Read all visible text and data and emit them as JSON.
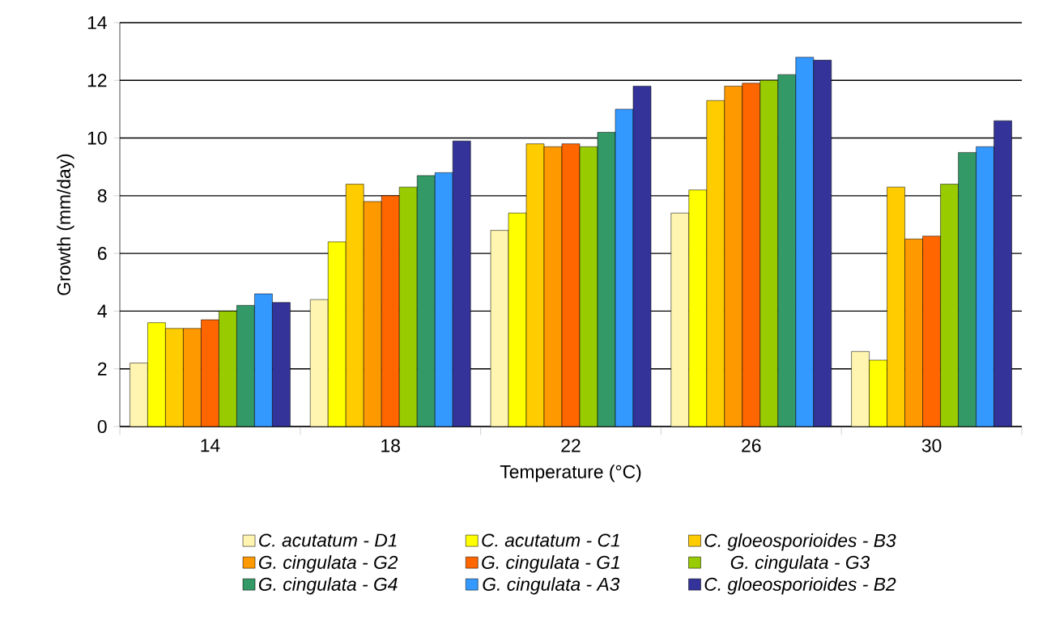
{
  "chart_data": {
    "type": "bar",
    "xlabel": "Temperature (°C)",
    "ylabel": "Growth (mm/day)",
    "categories": [
      "14",
      "18",
      "22",
      "26",
      "30"
    ],
    "ylim": [
      0,
      14
    ],
    "yticks": [
      0,
      2,
      4,
      6,
      8,
      10,
      12,
      14
    ],
    "grid": "y",
    "legend": "bottom",
    "series": [
      {
        "name": "C. acutatum - D1",
        "color": "#fff5b0",
        "values": [
          2.2,
          4.4,
          6.8,
          7.4,
          2.6
        ]
      },
      {
        "name": "C. acutatum - C1",
        "color": "#ffff00",
        "values": [
          3.6,
          6.4,
          7.4,
          8.2,
          2.3
        ]
      },
      {
        "name": "C. gloeosporioides - B3",
        "color": "#ffcc00",
        "values": [
          3.4,
          8.4,
          9.8,
          11.3,
          8.3
        ]
      },
      {
        "name": "G. cingulata - G2",
        "color": "#ff9900",
        "values": [
          3.4,
          7.8,
          9.7,
          11.8,
          6.5
        ]
      },
      {
        "name": "G. cingulata - G1",
        "color": "#ff6600",
        "values": [
          3.7,
          8.0,
          9.8,
          11.9,
          6.6
        ]
      },
      {
        "name": "G. cingulata - G3",
        "color": "#99cc00",
        "values": [
          4.0,
          8.3,
          9.7,
          12.0,
          8.4
        ]
      },
      {
        "name": "G. cingulata - G4",
        "color": "#339966",
        "values": [
          4.2,
          8.7,
          10.2,
          12.2,
          9.5
        ]
      },
      {
        "name": "G. cingulata - A3",
        "color": "#3399ff",
        "values": [
          4.6,
          8.8,
          11.0,
          12.8,
          9.7
        ]
      },
      {
        "name": "C. gloeosporioides - B2",
        "color": "#333399",
        "values": [
          4.3,
          9.9,
          11.8,
          12.7,
          10.6
        ]
      }
    ]
  }
}
